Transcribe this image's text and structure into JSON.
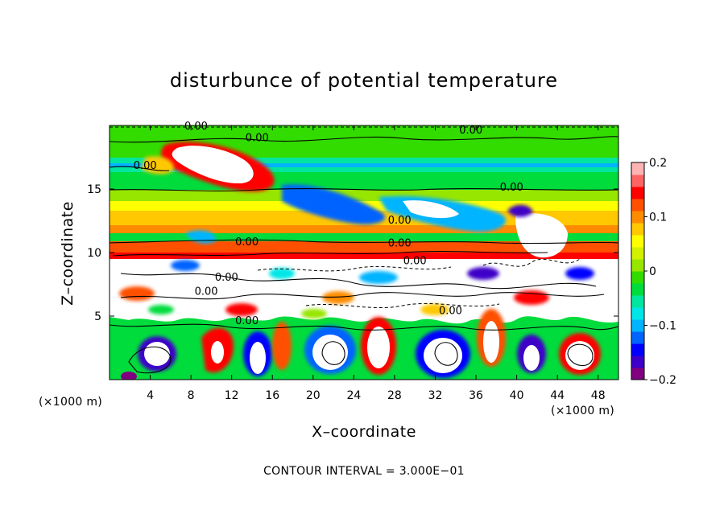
{
  "chart_data": {
    "type": "heatmap",
    "title": "disturbunce of potential temperature",
    "xlabel": "X–coordinate",
    "ylabel": "Z–coordinate",
    "x_unit": "(×1000 m)",
    "z_unit": "(×1000 m)",
    "x_ticks": [
      4,
      8,
      12,
      16,
      20,
      24,
      28,
      32,
      36,
      40,
      44,
      48
    ],
    "y_ticks": [
      5,
      10,
      15
    ],
    "xlim": [
      0,
      50
    ],
    "ylim": [
      0,
      20
    ],
    "colorbar": {
      "ticks": [
        0.2,
        0.1,
        0,
        -0.1,
        -0.2
      ],
      "tick_labels": [
        "0.2",
        "0.1",
        "0",
        "−0.1",
        "−0.2"
      ],
      "range": [
        -0.2,
        0.2
      ],
      "colors": [
        "#800080",
        "#3c00c8",
        "#0000ff",
        "#0064ff",
        "#00b4ff",
        "#00e6e6",
        "#00e6a0",
        "#00dc3c",
        "#32dc00",
        "#96e600",
        "#d2f000",
        "#ffff00",
        "#ffc800",
        "#ff8c00",
        "#ff5000",
        "#ff0000",
        "#ff6464",
        "#ffb4b4"
      ]
    },
    "contour_interval": "CONTOUR INTERVAL = 3.000E−01",
    "contour_label": "0.00",
    "contour_labels_positions": [
      {
        "x": 8.5,
        "z": 19.8
      },
      {
        "x": 14.5,
        "z": 18.9
      },
      {
        "x": 3.5,
        "z": 16.7
      },
      {
        "x": 35.5,
        "z": 19.5
      },
      {
        "x": 39.5,
        "z": 15.0
      },
      {
        "x": 28.5,
        "z": 12.4
      },
      {
        "x": 13.5,
        "z": 10.7
      },
      {
        "x": 28.5,
        "z": 10.6
      },
      {
        "x": 30.0,
        "z": 9.2
      },
      {
        "x": 11.5,
        "z": 7.9
      },
      {
        "x": 9.5,
        "z": 6.8
      },
      {
        "x": 13.5,
        "z": 4.5
      },
      {
        "x": 33.5,
        "z": 5.3
      }
    ],
    "layers": [
      {
        "z": [
          0,
          5
        ],
        "description": "lower region dominated by large positive and negative eddies"
      },
      {
        "z": [
          5.5,
          9.8
        ],
        "description": "turbulent mixed layer with many contours"
      },
      {
        "z": [
          10,
          11.5
        ],
        "value": 0.12
      },
      {
        "z": [
          11.5,
          13.5
        ],
        "value": 0.06
      },
      {
        "z": [
          13.5,
          16
        ],
        "value": 0.0
      },
      {
        "z": [
          16,
          17
        ],
        "value": -0.05
      },
      {
        "z": [
          17,
          20
        ],
        "value": 0.0
      }
    ]
  }
}
